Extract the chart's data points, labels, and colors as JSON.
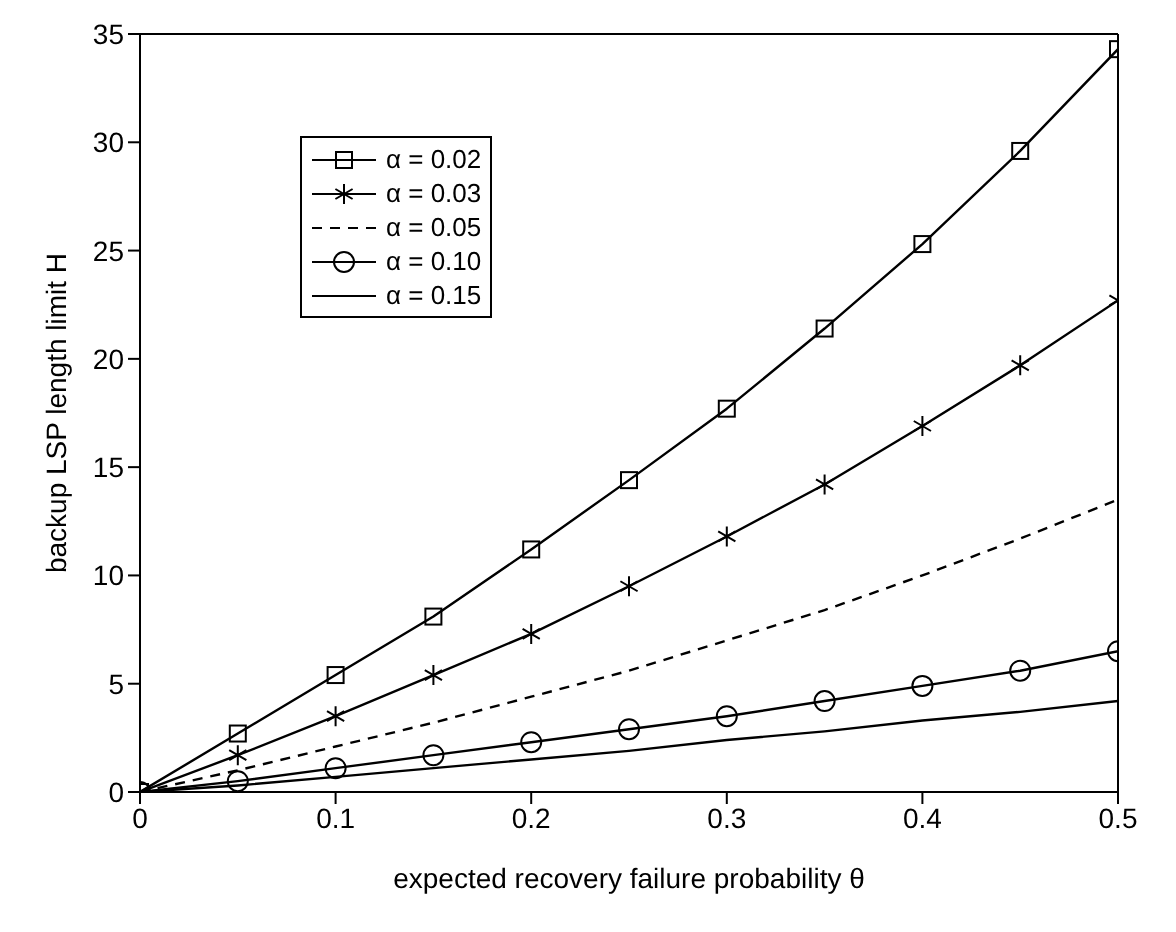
{
  "chart_data": {
    "type": "line",
    "xlabel": "expected recovery failure probability θ",
    "ylabel": "backup LSP length limit H",
    "x": [
      0,
      0.05,
      0.1,
      0.15,
      0.2,
      0.25,
      0.3,
      0.35,
      0.4,
      0.45,
      0.5
    ],
    "series": [
      {
        "name": "α = 0.02",
        "color": "#000000",
        "marker": "square",
        "line_style": "solid",
        "values": [
          0,
          2.7,
          5.4,
          8.1,
          11.2,
          14.4,
          17.7,
          21.4,
          25.3,
          29.6,
          34.3
        ]
      },
      {
        "name": "α = 0.03",
        "color": "#000000",
        "marker": "cross",
        "line_style": "solid",
        "values": [
          0,
          1.7,
          3.5,
          5.4,
          7.3,
          9.5,
          11.8,
          14.2,
          16.9,
          19.7,
          22.7
        ]
      },
      {
        "name": "α = 0.05",
        "color": "#000000",
        "marker": "none",
        "line_style": "dashed",
        "values": [
          0,
          1.0,
          2.1,
          3.2,
          4.4,
          5.6,
          7.0,
          8.4,
          10.0,
          11.7,
          13.5
        ]
      },
      {
        "name": "α = 0.10",
        "color": "#000000",
        "marker": "circle",
        "line_style": "solid",
        "values": [
          0,
          0.5,
          1.1,
          1.7,
          2.3,
          2.9,
          3.5,
          4.2,
          4.9,
          5.6,
          6.5
        ]
      },
      {
        "name": "α = 0.15",
        "color": "#000000",
        "marker": "none",
        "line_style": "solid",
        "values": [
          0,
          0.3,
          0.7,
          1.1,
          1.5,
          1.9,
          2.4,
          2.8,
          3.3,
          3.7,
          4.2
        ]
      }
    ],
    "xlim": [
      0,
      0.5
    ],
    "xticks": [
      0,
      0.1,
      0.2,
      0.3,
      0.4,
      0.5
    ],
    "ylim": [
      0,
      35
    ],
    "yticks": [
      0,
      5,
      10,
      15,
      20,
      25,
      30,
      35
    ],
    "grid": false,
    "legend": "top left"
  }
}
